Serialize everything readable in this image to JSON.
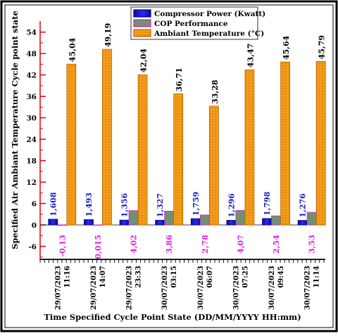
{
  "chart_data": {
    "type": "bar",
    "title": "",
    "xlabel": "Time Specified Cycle Point State (DD/MM/YYYY HH:mm)",
    "ylabel": "Specified Air Ambiant Temperature Cycle point state",
    "ylim": [
      -10,
      56
    ],
    "yticks": [
      -6,
      0,
      6,
      12,
      18,
      24,
      30,
      36,
      42,
      48,
      54
    ],
    "legend_position": "top-center",
    "categories": [
      {
        "date": "29/07/2023",
        "time": "11:16"
      },
      {
        "date": "29/07/2023",
        "time": "14:07"
      },
      {
        "date": "29/07/2023",
        "time": "23:33"
      },
      {
        "date": "30/07/2023",
        "time": "03:15"
      },
      {
        "date": "30/07/2023",
        "time": "06:07"
      },
      {
        "date": "30/07/2023",
        "time": "07:25"
      },
      {
        "date": "30/07/2023",
        "time": "09:45"
      },
      {
        "date": "30/07/2023",
        "time": "11:14"
      }
    ],
    "series": [
      {
        "name": "Compressor Power (Kwatt)",
        "color": "#1010cc",
        "values": [
          1.608,
          1.493,
          1.356,
          1.327,
          1.759,
          1.296,
          1.798,
          1.276
        ],
        "labels": [
          "1,608",
          "1,493",
          "1,356",
          "1,327",
          "1,759",
          "1,296",
          "1,798",
          "1,276"
        ],
        "label_color": "#1a1acc"
      },
      {
        "name": "COP Performance",
        "color": "#7a9a7a",
        "border": "#cc22cc",
        "values": [
          -0.13,
          0.015,
          4.02,
          3.86,
          2.78,
          4.07,
          2.54,
          3.53
        ],
        "labels": [
          "-0,13",
          "0,015",
          "4,02",
          "3,86",
          "2,78",
          "4,07",
          "2,54",
          "3,53"
        ],
        "label_color": "#e020e0"
      },
      {
        "name": "Ambiant Temperature (°C)",
        "color": "#f39a12",
        "values": [
          45.04,
          49.19,
          42.04,
          36.71,
          33.28,
          43.47,
          45.64,
          45.79
        ],
        "labels": [
          "45,04",
          "49,19",
          "42,04",
          "36,71",
          "33,28",
          "43,47",
          "45,64",
          "45,79"
        ],
        "label_color": "#000000"
      }
    ]
  }
}
